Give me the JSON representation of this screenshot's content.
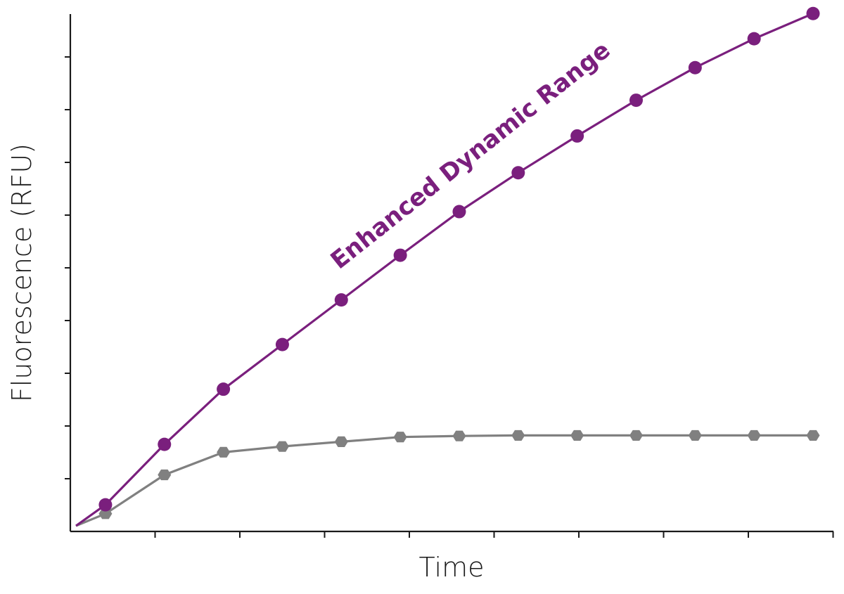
{
  "chart_data": {
    "type": "line",
    "title": "",
    "xlabel": "Time",
    "ylabel": "Fluorescence (RFU)",
    "annotation": "Enhanced Dynamic Range",
    "x": [
      0,
      0.5,
      1.5,
      2.5,
      3.5,
      4.5,
      5.5,
      6.5,
      7.5,
      8.5,
      9.5,
      10.5,
      11.5,
      12.5
    ],
    "xlim": [
      0,
      12.5
    ],
    "ylim": [
      0,
      9.7
    ],
    "x_ticks": 10,
    "y_ticks": 9,
    "grid": false,
    "legend": "none",
    "series": [
      {
        "color": "#7a1f7d",
        "marker": "circle",
        "marker_from_index": 1,
        "values": [
          0.0,
          0.4,
          1.55,
          2.6,
          3.45,
          4.3,
          5.15,
          5.98,
          6.72,
          7.42,
          8.1,
          8.72,
          9.27,
          9.75
        ]
      },
      {
        "color": "#808080",
        "marker": "hexagon",
        "marker_from_index": 1,
        "values": [
          0.0,
          0.23,
          0.97,
          1.4,
          1.51,
          1.6,
          1.69,
          1.71,
          1.72,
          1.72,
          1.72,
          1.72,
          1.72,
          1.72
        ]
      }
    ]
  }
}
